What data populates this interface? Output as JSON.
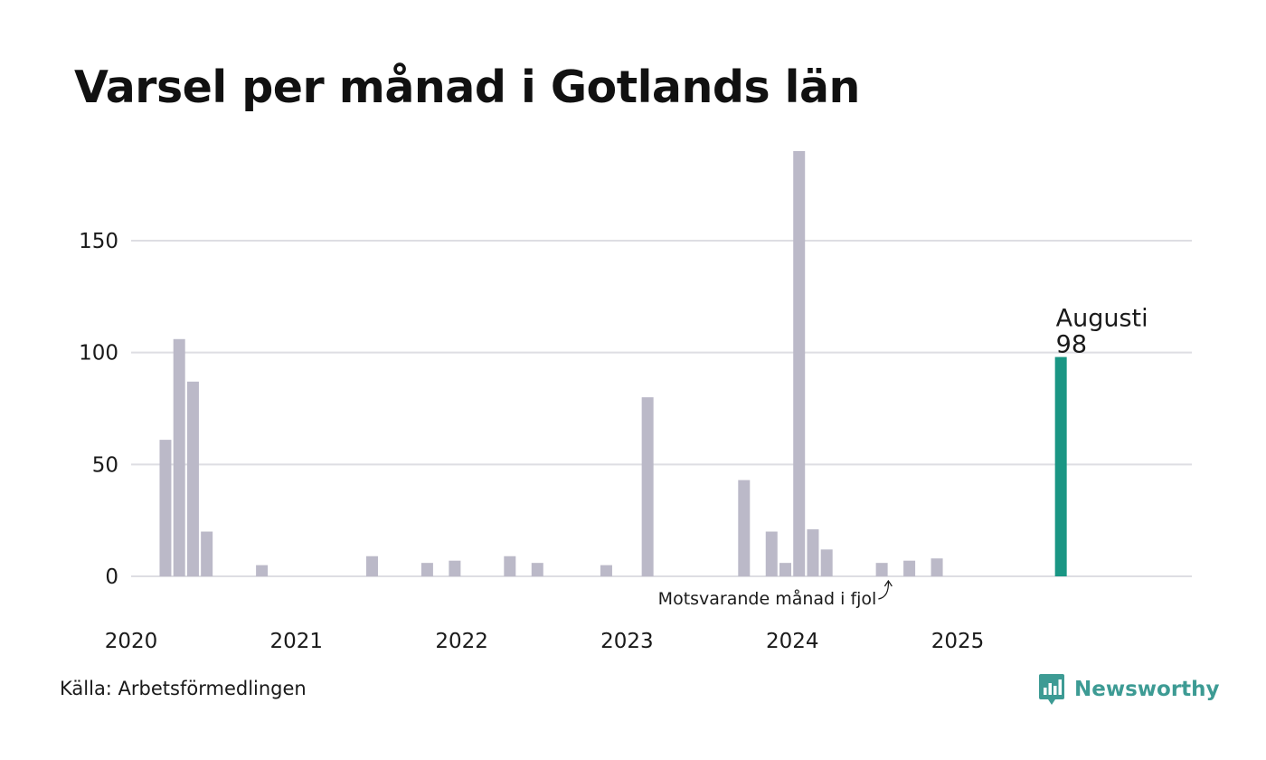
{
  "title": "Varsel per månad i Gotlands län",
  "source": "Källa: Arbetsförmedlingen",
  "brand": {
    "name": "Newsworthy",
    "icon": "newsworthy-logo-icon",
    "color": "#3d9b94"
  },
  "colors": {
    "bar": "#bbb9c8",
    "highlight": "#1a9684",
    "grid": "#dedee3"
  },
  "chart_data": {
    "type": "bar",
    "x_start": "2020-01",
    "x_end": "2026-06",
    "ylim": [
      0,
      190
    ],
    "yticks": [
      0,
      50,
      100,
      150
    ],
    "xtick_labels": [
      "2020",
      "2021",
      "2022",
      "2023",
      "2024",
      "2025"
    ],
    "grid": true,
    "series": [
      {
        "values": [
          [
            "2020-03",
            61
          ],
          [
            "2020-04",
            106
          ],
          [
            "2020-05",
            87
          ],
          [
            "2020-06",
            20
          ],
          [
            "2020-10",
            5
          ],
          [
            "2021-06",
            9
          ],
          [
            "2021-10",
            6
          ],
          [
            "2021-12",
            7
          ],
          [
            "2022-04",
            9
          ],
          [
            "2022-06",
            6
          ],
          [
            "2022-11",
            5
          ],
          [
            "2023-02",
            80
          ],
          [
            "2023-09",
            43
          ],
          [
            "2023-11",
            20
          ],
          [
            "2023-12",
            6
          ],
          [
            "2024-01",
            190
          ],
          [
            "2024-02",
            21
          ],
          [
            "2024-03",
            12
          ],
          [
            "2024-07",
            6
          ],
          [
            "2024-09",
            7
          ],
          [
            "2024-11",
            8
          ],
          [
            "2025-08",
            98
          ]
        ]
      }
    ],
    "highlight": {
      "date": "2025-08",
      "label": "Augusti",
      "value": "98"
    },
    "annotation": {
      "text": "Motsvarande månad i fjol",
      "target_date": "2024-08"
    }
  }
}
